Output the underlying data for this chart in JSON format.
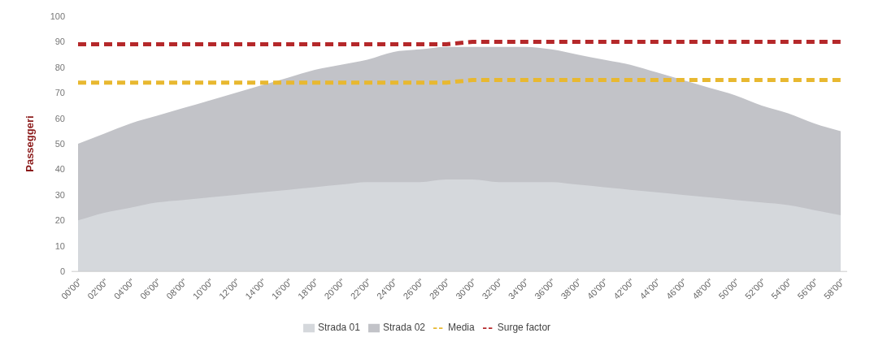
{
  "chart_data": {
    "type": "area",
    "ylabel": "Passeggeri",
    "categories": [
      "00'00\"",
      "02'00\"",
      "04'00\"",
      "06'00\"",
      "08'00\"",
      "10'00\"",
      "12'00\"",
      "14'00\"",
      "16'00\"",
      "18'00\"",
      "20'00\"",
      "22'00\"",
      "24'00\"",
      "26'00\"",
      "28'00\"",
      "30'00\"",
      "32'00\"",
      "34'00\"",
      "36'00\"",
      "38'00\"",
      "40'00\"",
      "42'00\"",
      "44'00\"",
      "46'00\"",
      "48'00\"",
      "50'00\"",
      "52'00\"",
      "54'00\"",
      "56'00\"",
      "58'00\""
    ],
    "series": [
      {
        "name": "Strada 01",
        "color": "#d5d8dc",
        "values": [
          20,
          23,
          25,
          27,
          28,
          29,
          30,
          31,
          32,
          33,
          34,
          35,
          35,
          35,
          36,
          36,
          35,
          35,
          35,
          34,
          33,
          32,
          31,
          30,
          29,
          28,
          27,
          26,
          24,
          22
        ]
      },
      {
        "name": "Strada 02",
        "color": "#c2c3c8",
        "values": [
          50,
          54,
          58,
          61,
          64,
          67,
          70,
          73,
          76,
          79,
          81,
          83,
          86,
          87,
          88,
          88,
          88,
          88,
          87,
          85,
          83,
          81,
          78,
          75,
          72,
          69,
          65,
          62,
          58,
          55
        ]
      },
      {
        "name": "Media",
        "type": "line",
        "line_style": "dashed",
        "color": "#e8b830",
        "values": [
          74,
          74,
          74,
          74,
          74,
          74,
          74,
          74,
          74,
          74,
          74,
          74,
          74,
          74,
          74,
          75,
          75,
          75,
          75,
          75,
          75,
          75,
          75,
          75,
          75,
          75,
          75,
          75,
          75,
          75
        ]
      },
      {
        "name": "Surge factor",
        "type": "line",
        "line_style": "dashed",
        "color": "#b5282a",
        "values": [
          89,
          89,
          89,
          89,
          89,
          89,
          89,
          89,
          89,
          89,
          89,
          89,
          89,
          89,
          89,
          90,
          90,
          90,
          90,
          90,
          90,
          90,
          90,
          90,
          90,
          90,
          90,
          90,
          90,
          90
        ]
      }
    ],
    "ylim": [
      0,
      100
    ],
    "yticks": [
      0,
      10,
      20,
      30,
      40,
      50,
      60,
      70,
      80,
      90,
      100
    ],
    "grid": false,
    "legend": "bottom",
    "marker": "none"
  }
}
